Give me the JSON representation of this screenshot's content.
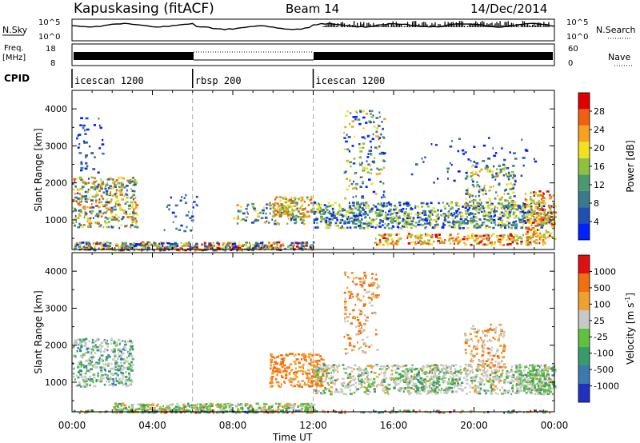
{
  "header": {
    "station": "Kapuskasing (fitACF)",
    "beam": "Beam 14",
    "date": "14/Dec/2014"
  },
  "strip_labels": {
    "nsky": "N.Sky",
    "nsky_ticks": [
      "10^5",
      "10^0"
    ],
    "nsearch": "N.Search",
    "nsearch_ticks": [
      "10^5",
      "10^0"
    ],
    "freq_line1": "Freq.",
    "freq_line2": "[MHz]",
    "freq_ticks": [
      "18",
      "8"
    ],
    "nave": "Nave",
    "nave_ticks": [
      "60",
      "0"
    ],
    "cpid": "CPID"
  },
  "cpid_segments": [
    {
      "name": "icescan 1200",
      "start_hour": 0,
      "end_hour": 6
    },
    {
      "name": "rbsp 200",
      "start_hour": 6,
      "end_hour": 12
    },
    {
      "name": "icescan 1200",
      "start_hour": 12,
      "end_hour": 24
    }
  ],
  "chart_data": [
    {
      "type": "heatmap",
      "ylabel": "Slant Range [km]",
      "yticks": [
        "1000",
        "2000",
        "3000",
        "4000"
      ],
      "ylim": [
        200,
        4500
      ],
      "xlim": [
        0,
        24
      ],
      "colorbar_label": "Power [dB]",
      "colorbar_ticks": [
        "28",
        "24",
        "20",
        "16",
        "12",
        "8",
        "4"
      ],
      "colors": [
        "#0020ff",
        "#2050b0",
        "#3a7a8a",
        "#4a9a70",
        "#90c040",
        "#f0e020",
        "#f8a020",
        "#f06010",
        "#e00000"
      ]
    },
    {
      "type": "heatmap",
      "ylabel": "Slant Range [km]",
      "yticks": [
        "1000",
        "2000",
        "3000",
        "4000"
      ],
      "ylim": [
        200,
        4500
      ],
      "xlim": [
        0,
        24
      ],
      "colorbar_label": "Velocity [m s",
      "colorbar_label_sup": "-1",
      "colorbar_label_end": "]",
      "colorbar_ticks": [
        "1000",
        "500",
        "100",
        "25",
        "-25",
        "-100",
        "-500",
        "-1000"
      ],
      "colors": [
        "#2030c0",
        "#3a7ab0",
        "#3a9a6a",
        "#60c040",
        "#c8c8c8",
        "#f0a030",
        "#f07010",
        "#e01010"
      ],
      "xlabel": "Time UT",
      "xticks": [
        "00:00",
        "04:00",
        "08:00",
        "12:00",
        "16:00",
        "20:00",
        "00:00"
      ]
    }
  ]
}
